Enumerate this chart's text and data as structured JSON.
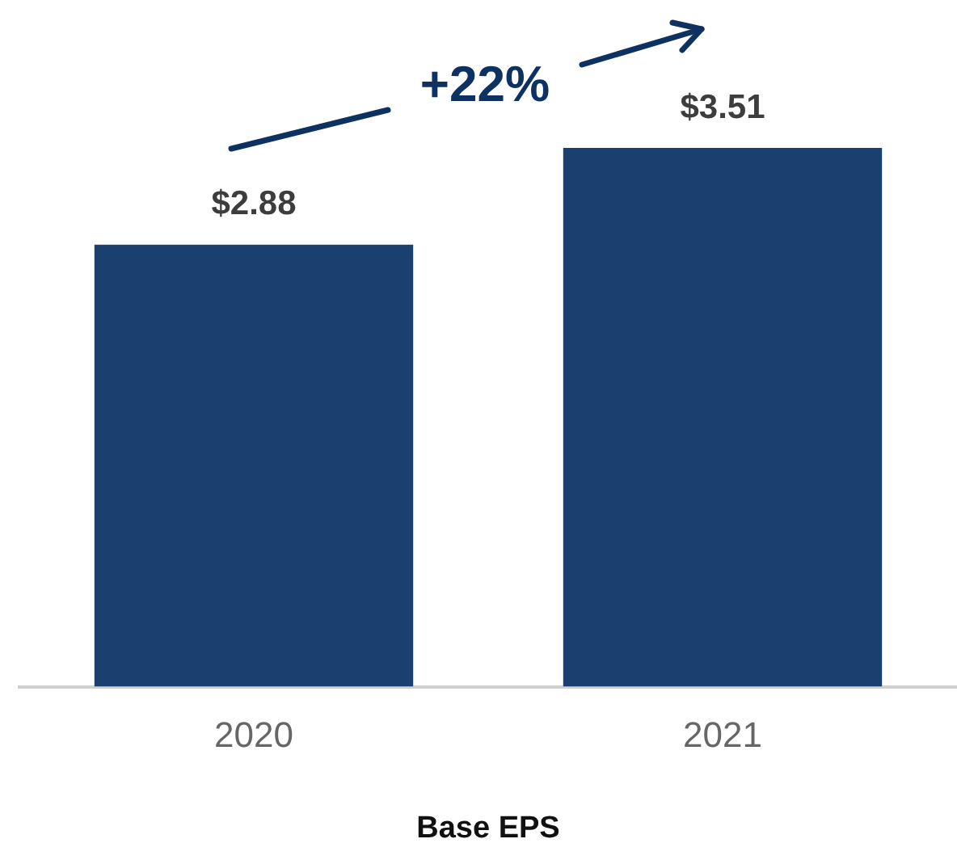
{
  "chart_data": {
    "type": "bar",
    "xlabel": "Base EPS",
    "categories": [
      "2020",
      "2021"
    ],
    "values": [
      2.88,
      3.51
    ],
    "color": "#1a406f",
    "value_labels": [
      "$2.88",
      "$3.51"
    ],
    "tick_labels": "x",
    "grid": false,
    "legend": false,
    "annotations": [
      "+22%"
    ]
  }
}
